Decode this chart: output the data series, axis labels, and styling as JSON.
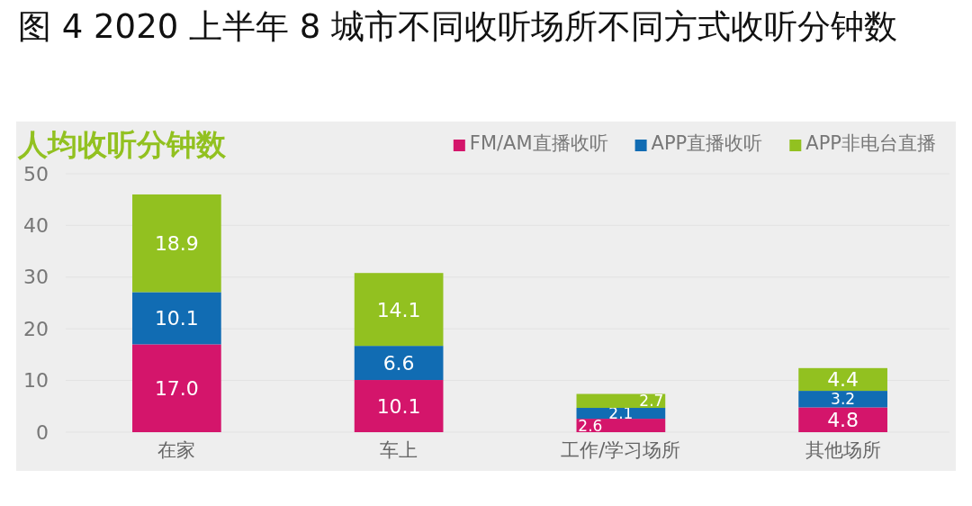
{
  "chart_data": {
    "type": "bar",
    "title": "图 4  2020 上半年 8 城市不同收听场所不同方式收听分钟数",
    "ylabel": "人均收听分钟数",
    "categories": [
      "在家",
      "车上",
      "工作/学习场所",
      "其他场所"
    ],
    "stacked": true,
    "series": [
      {
        "name": "FM/AM直播收听",
        "color": "#d4156b",
        "values": [
          17.0,
          10.1,
          2.6,
          4.8
        ],
        "value_labels": [
          "17.0",
          "10.1",
          "2.6",
          "4.8"
        ]
      },
      {
        "name": "APP直播收听",
        "color": "#116cb3",
        "values": [
          10.1,
          6.6,
          2.1,
          3.2
        ],
        "value_labels": [
          "10.1",
          "6.6",
          "2.1",
          "3.2"
        ]
      },
      {
        "name": "APP非电台直播",
        "color": "#92c120",
        "values": [
          18.9,
          14.1,
          2.7,
          4.4
        ],
        "value_labels": [
          "18.9",
          "14.1",
          "2.7",
          "4.4"
        ]
      }
    ],
    "ylim": [
      0,
      50
    ],
    "yticks": [
      0,
      10,
      20,
      30,
      40,
      50
    ],
    "grid": "y",
    "legend": "top right"
  }
}
